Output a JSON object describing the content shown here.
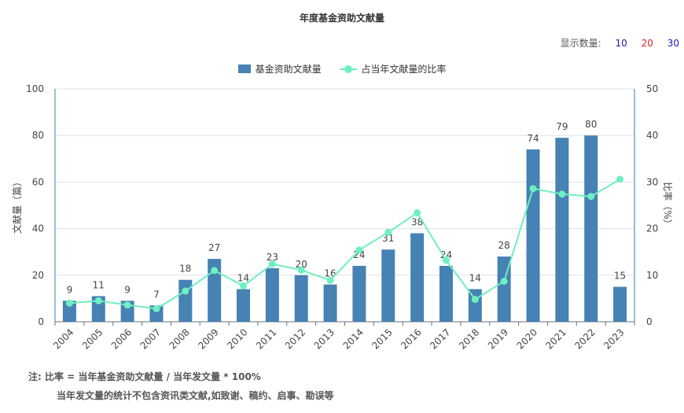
{
  "title": "年度基金资助文献量",
  "display_count": {
    "label": "显示数量:",
    "options": [
      {
        "label": "10",
        "color": "#1a1ab8"
      },
      {
        "label": "20",
        "color": "#e02020"
      },
      {
        "label": "30",
        "color": "#1a1ab8"
      }
    ]
  },
  "colors": {
    "bar": "#4682b4",
    "line": "#6ef0c0",
    "axis_left": "#2e86a0",
    "grid": "#e0e0e0"
  },
  "chart_data": {
    "type": "bar",
    "title": "年度基金资助文献量",
    "categories": [
      "2004",
      "2005",
      "2006",
      "2007",
      "2008",
      "2009",
      "2010",
      "2011",
      "2012",
      "2013",
      "2014",
      "2015",
      "2016",
      "2017",
      "2018",
      "2019",
      "2020",
      "2021",
      "2022",
      "2023"
    ],
    "series": [
      {
        "name": "基金资助文献量",
        "type": "bar",
        "axis": "left",
        "values": [
          9,
          11,
          9,
          7,
          18,
          27,
          14,
          23,
          20,
          16,
          24,
          31,
          38,
          24,
          14,
          28,
          74,
          79,
          80,
          15
        ]
      },
      {
        "name": "占当年文献量的比率",
        "type": "line",
        "axis": "right",
        "values": [
          4.0,
          4.5,
          3.6,
          2.8,
          6.6,
          11.0,
          7.7,
          12.4,
          11.1,
          8.9,
          15.4,
          19.2,
          23.4,
          13.2,
          4.8,
          8.7,
          28.6,
          27.4,
          26.9,
          30.6
        ]
      }
    ],
    "ylabel": "文献量（篇）",
    "y2label": "比率（%）",
    "ylim": [
      0,
      100
    ],
    "yticks": [
      0,
      20,
      40,
      60,
      80,
      100
    ],
    "y2lim": [
      0,
      50
    ],
    "y2ticks": [
      0,
      10,
      20,
      30,
      40,
      50
    ],
    "grid": true,
    "legend": "top-center",
    "xtick_rotation": -45
  },
  "notes": {
    "line1": "注:  比率 = 当年基金资助文献量 / 当年发文量 * 100%",
    "line2": "当年发文量的统计不包含资讯类文献,如致谢、稿约、启事、勘误等"
  }
}
